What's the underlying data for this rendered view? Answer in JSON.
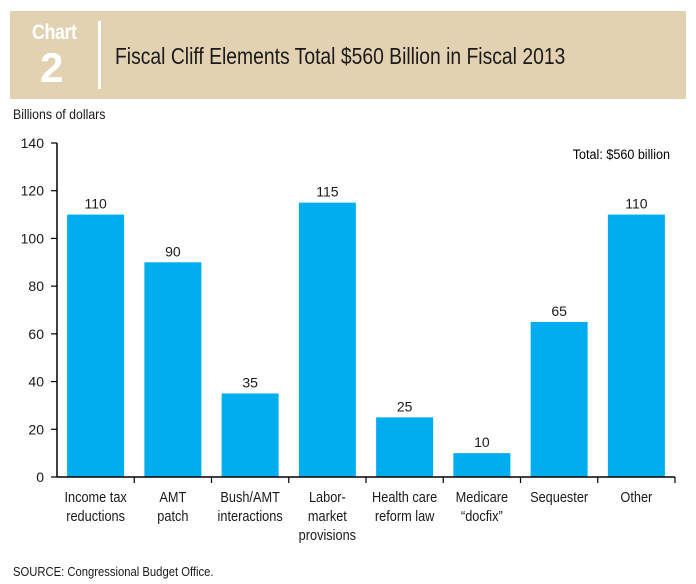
{
  "header": {
    "chart_word": "Chart",
    "chart_number": "2",
    "title": "Fiscal Cliff Elements Total $560 Billion in Fiscal 2013"
  },
  "colors": {
    "bar": "#00aeef",
    "header_bg": "#e3d2b2"
  },
  "source": "SOURCE: Congressional Budget Office.",
  "chart_data": {
    "type": "bar",
    "title": "Fiscal Cliff Elements Total $560 Billion in Fiscal 2013",
    "ylabel": "Billions of dollars",
    "xlabel": "",
    "annotation": "Total: $560 billion",
    "ylim": [
      0,
      140
    ],
    "yticks": [
      0,
      20,
      40,
      60,
      80,
      100,
      120,
      140
    ],
    "grid": false,
    "categories": [
      [
        "Income tax",
        "reductions"
      ],
      [
        "AMT",
        "patch"
      ],
      [
        "Bush/AMT",
        "interactions"
      ],
      [
        "Labor-",
        "market",
        "provisions"
      ],
      [
        "Health care",
        "reform law"
      ],
      [
        "Medicare",
        "“docfix”"
      ],
      [
        "Sequester"
      ],
      [
        "Other"
      ]
    ],
    "values": [
      110,
      90,
      35,
      115,
      25,
      10,
      65,
      110
    ]
  }
}
